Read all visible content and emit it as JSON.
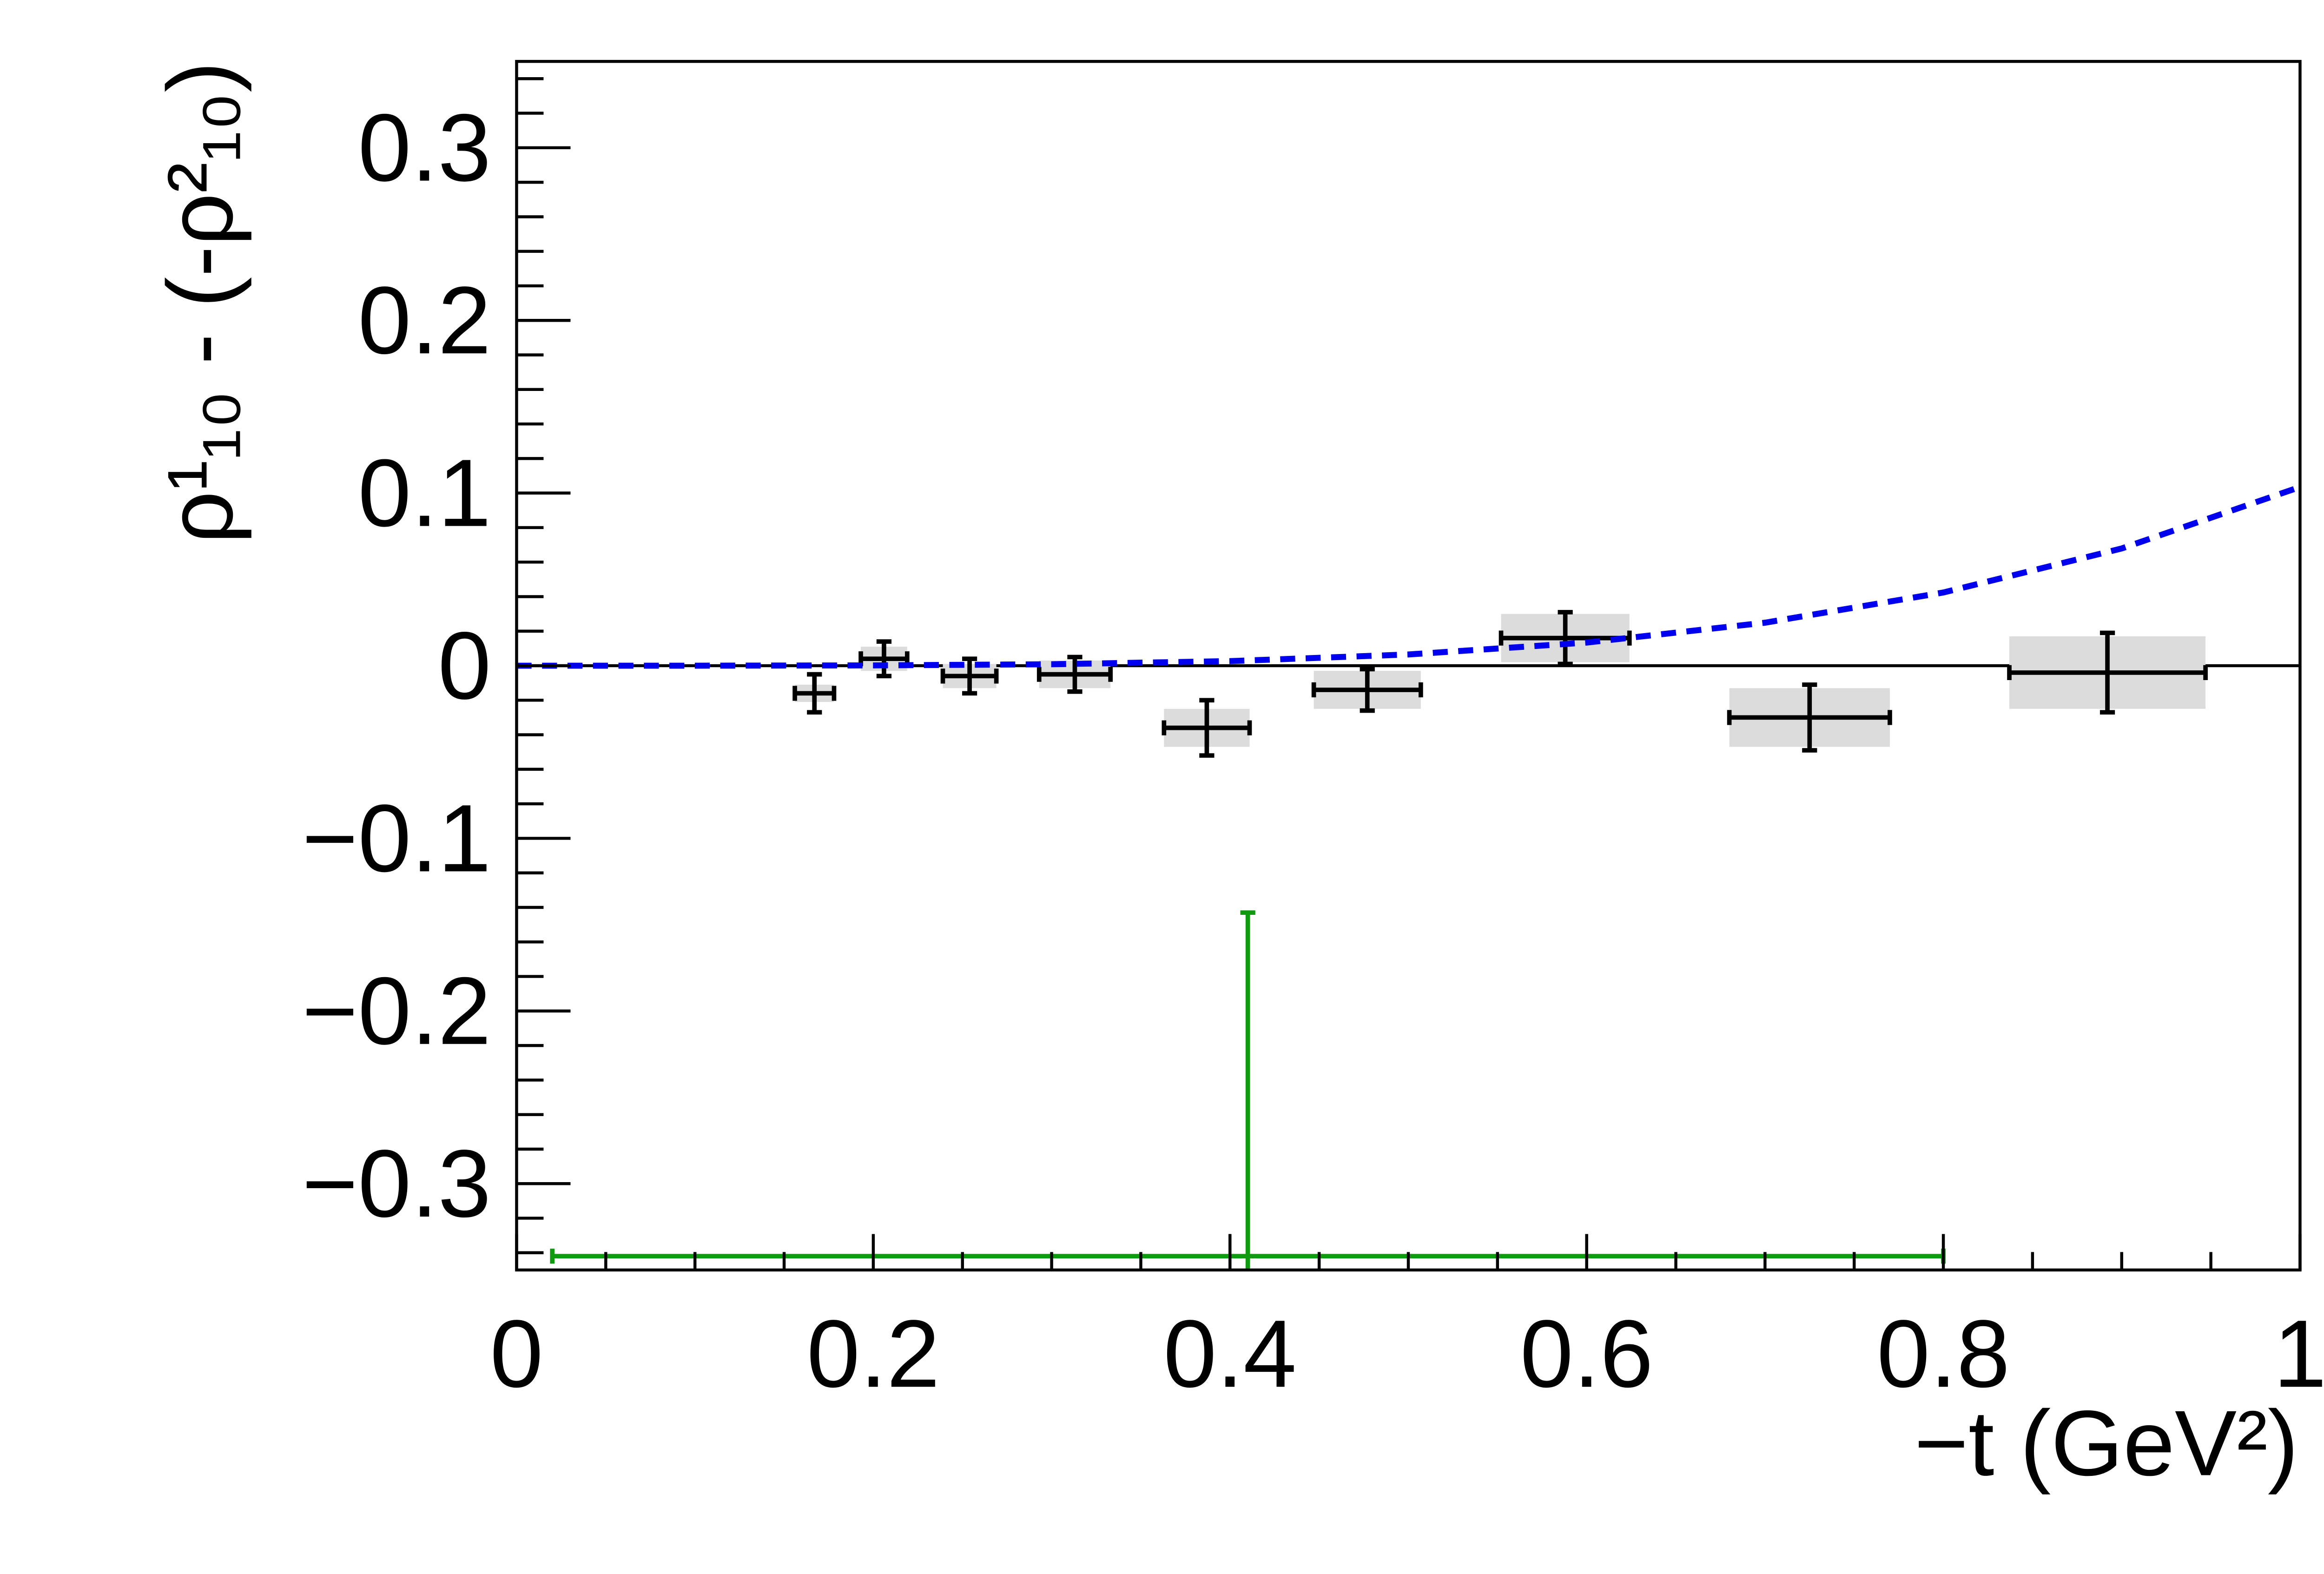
{
  "chart_data": {
    "type": "errorbar",
    "xlabel": "−t (GeV²)",
    "ylabel": "ρ¹₁₀ - (-ρ²₁₀)",
    "xlim": [
      0,
      1
    ],
    "ylim": [
      -0.35,
      0.35
    ],
    "xticks": [
      0,
      0.2,
      0.4,
      0.6,
      0.8,
      1
    ],
    "yticks": [
      {
        "value": -0.3,
        "label": "−0.3"
      },
      {
        "value": -0.2,
        "label": "−0.2"
      },
      {
        "value": -0.1,
        "label": "−0.1"
      },
      0,
      0.1,
      0.2,
      0.3
    ],
    "x_minor_divisions": 4,
    "y_minor_divisions": 5,
    "hline": 0,
    "series": [
      {
        "kind": "data",
        "color": "#000000",
        "syst_color": "#dcdcdc",
        "x": [
          0.167,
          0.206,
          0.254,
          0.313,
          0.387,
          0.477,
          0.588,
          0.725,
          0.892
        ],
        "values": [
          -0.016,
          0.004,
          -0.006,
          -0.005,
          -0.036,
          -0.014,
          0.016,
          -0.03,
          -0.004
        ],
        "xerr": [
          0.011,
          0.013,
          0.015,
          0.02,
          0.024,
          0.03,
          0.036,
          0.045,
          0.055
        ],
        "yerr": [
          0.011,
          0.01,
          0.01,
          0.01,
          0.016,
          0.012,
          0.015,
          0.019,
          0.023
        ],
        "syst": [
          0.005,
          0.007,
          0.007,
          0.008,
          0.011,
          0.011,
          0.014,
          0.017,
          0.021
        ]
      },
      {
        "kind": "data",
        "color": "#109a10",
        "x": [
          0.41
        ],
        "values": [
          -0.342
        ],
        "xerr": [
          0.39
        ],
        "yerr": [
          0.199
        ]
      },
      {
        "kind": "curve",
        "color": "#0000ee",
        "x": [
          0,
          0.1,
          0.2,
          0.3,
          0.4,
          0.5,
          0.6,
          0.7,
          0.8,
          0.9,
          1
        ],
        "values": [
          0,
          1e-05,
          0.00017,
          0.00084,
          0.00265,
          0.0065,
          0.0134,
          0.0249,
          0.0424,
          0.0679,
          0.1035
        ]
      }
    ]
  }
}
